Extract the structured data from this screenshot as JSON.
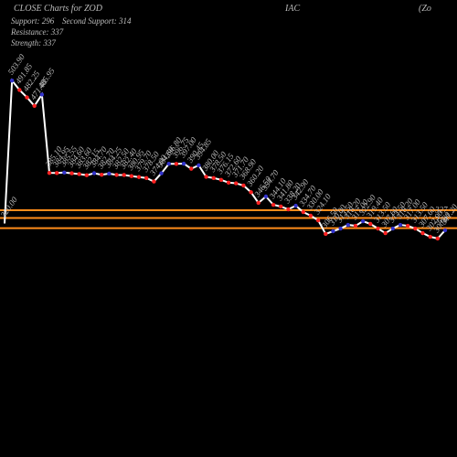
{
  "chart_data": {
    "type": "line",
    "title": "CLOSE Charts for ZOD",
    "title_mid": "IAC",
    "title_right": "(Zo",
    "support": "Support: 296",
    "second_support": "Second Support: 314",
    "resistance": "Resistance: 337",
    "strength": "Strength: 337",
    "values": [
      320.0,
      503.9,
      491.85,
      482.25,
      471.4,
      485.95,
      385.1,
      384.95,
      385.55,
      384.6,
      383.6,
      382.15,
      384.7,
      382.7,
      384.25,
      382.5,
      382.4,
      380.95,
      379.7,
      378.5,
      374.0,
      384.6,
      396.8,
      396.75,
      397.0,
      390.45,
      394.85,
      380.0,
      378.5,
      376.15,
      372.6,
      371.7,
      368.9,
      360.2,
      346.5,
      354.7,
      344.1,
      341.8,
      338.2,
      342.9,
      334.7,
      330.0,
      324.1,
      306.5,
      310.0,
      313.5,
      318.2,
      317.0,
      322.9,
      319.4,
      313.5,
      307.6,
      313.5,
      318.2,
      317.0,
      313.5,
      307.6,
      302.9,
      300.6,
      311.2
    ],
    "value_labels": [
      "320.00",
      "503.90",
      "491.85",
      "482.25",
      "471.40",
      "485.95",
      "385.10",
      "384.95",
      "385.55",
      "384.60",
      "383.60",
      "382.15",
      "384.70",
      "382.70",
      "384.25",
      "382.50",
      "382.40",
      "380.95",
      "379.70",
      "378.50",
      "374.00",
      "384.60",
      "396.80",
      "396.75",
      "397.00",
      "390.45",
      "394.85",
      "380.00",
      "378.50",
      "376.15",
      "372.60",
      "371.70",
      "368.90",
      "360.20",
      "346.50",
      "354.70",
      "344.10",
      "341.80",
      "338.20",
      "342.90",
      "334.70",
      "330.00",
      "324.10",
      "306.50",
      "310.00",
      "313.50",
      "318.20",
      "317.00",
      "322.90",
      "319.40",
      "313.50",
      "307.60",
      "313.50",
      "318.20",
      "317.00",
      "313.50",
      "307.60",
      "302.90",
      "300.60",
      "311.20"
    ],
    "color": "#ffffff",
    "up_color": "#3333cc",
    "down_color": "#ff2222",
    "levels": [
      337,
      327,
      314
    ],
    "level_color": "#ff8c1a",
    "ylim": [
      290,
      510
    ]
  }
}
